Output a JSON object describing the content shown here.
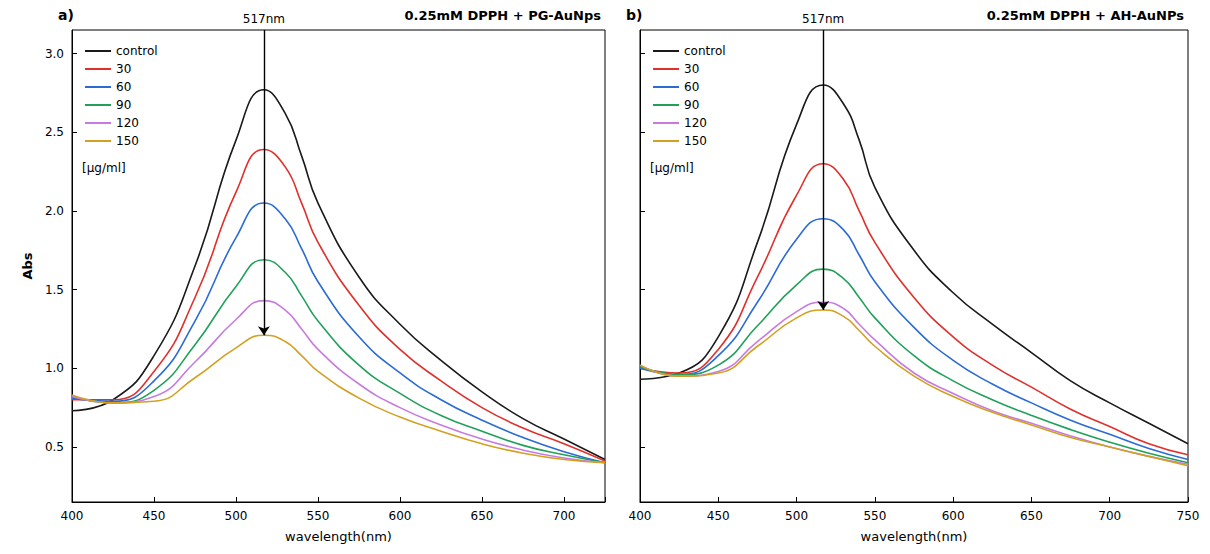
{
  "chart_data": [
    {
      "type": "line",
      "label": "a)",
      "title": "0.25mM DPPH + PG-AuNps",
      "x_label": "wavelength(nm)",
      "y_label": "Abs",
      "x": [
        400,
        425,
        450,
        475,
        500,
        517,
        530,
        540,
        550,
        575,
        600,
        625,
        650,
        675,
        700,
        725
      ],
      "series": [
        {
          "name": "control",
          "color": "#1a1a1a",
          "values": [
            0.73,
            0.8,
            1.08,
            1.65,
            2.45,
            2.77,
            2.62,
            2.35,
            2.05,
            1.58,
            1.28,
            1.05,
            0.85,
            0.68,
            0.55,
            0.42
          ]
        },
        {
          "name": "30",
          "color": "#e0302c",
          "values": [
            0.8,
            0.8,
            0.98,
            1.45,
            2.12,
            2.39,
            2.28,
            2.05,
            1.8,
            1.4,
            1.12,
            0.92,
            0.75,
            0.62,
            0.52,
            0.41
          ]
        },
        {
          "name": "60",
          "color": "#2a6bd6",
          "values": [
            0.81,
            0.79,
            0.92,
            1.3,
            1.83,
            2.05,
            1.95,
            1.76,
            1.55,
            1.2,
            0.97,
            0.8,
            0.67,
            0.56,
            0.47,
            0.4
          ]
        },
        {
          "name": "90",
          "color": "#21a05a",
          "values": [
            0.82,
            0.78,
            0.86,
            1.15,
            1.52,
            1.69,
            1.61,
            1.46,
            1.3,
            1.02,
            0.84,
            0.7,
            0.6,
            0.51,
            0.45,
            0.4
          ]
        },
        {
          "name": "120",
          "color": "#c77be0",
          "values": [
            0.82,
            0.78,
            0.82,
            1.04,
            1.31,
            1.43,
            1.37,
            1.25,
            1.12,
            0.9,
            0.75,
            0.64,
            0.55,
            0.48,
            0.43,
            0.4
          ]
        },
        {
          "name": "150",
          "color": "#d4a020",
          "values": [
            0.83,
            0.78,
            0.79,
            0.94,
            1.13,
            1.21,
            1.17,
            1.08,
            0.98,
            0.81,
            0.69,
            0.6,
            0.52,
            0.46,
            0.42,
            0.4
          ]
        }
      ],
      "legend": "top-left",
      "legend_title": "[μg/ml]",
      "annotations": [
        {
          "text": "517nm",
          "x": 517
        }
      ],
      "xlim": [
        400,
        725
      ],
      "xticks": [
        400,
        450,
        500,
        550,
        600,
        650,
        700
      ],
      "ylim": [
        0.15,
        3.15
      ],
      "yticks": [
        0.5,
        {
          "value": 1,
          "label": "1.0"
        },
        1.5,
        {
          "value": 2,
          "label": "2.0"
        },
        2.5,
        {
          "value": 3,
          "label": "3.0"
        }
      ]
    },
    {
      "type": "line",
      "label": "b)",
      "title": "0.25mM DPPH + AH-AuNPs",
      "x_label": "wavelength(nm)",
      "x": [
        400,
        425,
        450,
        475,
        500,
        517,
        530,
        540,
        550,
        575,
        600,
        625,
        650,
        675,
        700,
        725,
        750
      ],
      "series": [
        {
          "name": "control",
          "color": "#1a1a1a",
          "values": [
            0.93,
            0.97,
            1.2,
            1.8,
            2.55,
            2.8,
            2.68,
            2.45,
            2.15,
            1.75,
            1.48,
            1.28,
            1.1,
            0.92,
            0.78,
            0.65,
            0.52
          ]
        },
        {
          "name": "30",
          "color": "#e0302c",
          "values": [
            1.0,
            0.97,
            1.12,
            1.58,
            2.1,
            2.3,
            2.2,
            2.0,
            1.8,
            1.45,
            1.2,
            1.02,
            0.88,
            0.74,
            0.63,
            0.52,
            0.45
          ]
        },
        {
          "name": "60",
          "color": "#2a6bd6",
          "values": [
            1.0,
            0.96,
            1.08,
            1.42,
            1.82,
            1.95,
            1.88,
            1.72,
            1.55,
            1.26,
            1.05,
            0.9,
            0.78,
            0.67,
            0.58,
            0.49,
            0.42
          ]
        },
        {
          "name": "90",
          "color": "#21a05a",
          "values": [
            1.01,
            0.96,
            1.02,
            1.27,
            1.53,
            1.63,
            1.57,
            1.45,
            1.32,
            1.08,
            0.92,
            0.8,
            0.7,
            0.61,
            0.53,
            0.46,
            0.4
          ]
        },
        {
          "name": "120",
          "color": "#c77be0",
          "values": [
            1.02,
            0.95,
            0.98,
            1.17,
            1.36,
            1.42,
            1.38,
            1.28,
            1.18,
            0.97,
            0.84,
            0.73,
            0.65,
            0.57,
            0.5,
            0.44,
            0.39
          ]
        },
        {
          "name": "150",
          "color": "#d4a020",
          "values": [
            1.02,
            0.95,
            0.97,
            1.14,
            1.32,
            1.37,
            1.33,
            1.24,
            1.14,
            0.95,
            0.82,
            0.72,
            0.64,
            0.56,
            0.5,
            0.44,
            0.38
          ]
        }
      ],
      "legend": "top-left",
      "legend_title": "[μg/ml]",
      "annotations": [
        {
          "text": "517nm",
          "x": 517
        }
      ],
      "xlim": [
        400,
        750
      ],
      "xticks": [
        400,
        450,
        500,
        550,
        600,
        650,
        700,
        750
      ],
      "ylim": [
        0.15,
        3.15
      ],
      "yticks": [
        0.5,
        {
          "value": 1,
          "label": "1.0"
        },
        1.5,
        {
          "value": 2,
          "label": "2.0"
        },
        2.5,
        {
          "value": 3,
          "label": "3.0"
        }
      ],
      "tick_labels": "x"
    }
  ]
}
